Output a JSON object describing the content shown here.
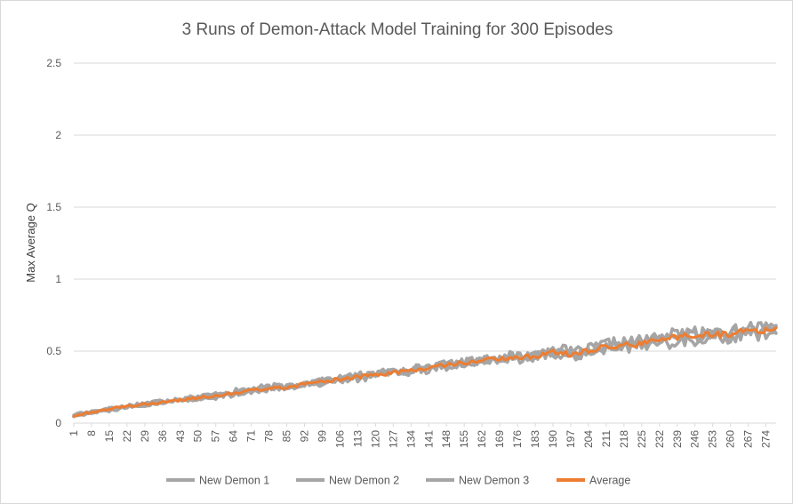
{
  "chart_data": {
    "type": "line",
    "title": "3 Runs of Demon-Attack Model Training for 300 Episodes",
    "xlabel": "",
    "ylabel": "Max Average Q",
    "ylim": [
      0,
      2.5
    ],
    "y_ticks": [
      "0",
      "0.5",
      "1",
      "1.5",
      "2",
      "2.5"
    ],
    "x_range": [
      1,
      278
    ],
    "x_tick_labels": [
      "1",
      "8",
      "15",
      "22",
      "29",
      "36",
      "43",
      "50",
      "57",
      "64",
      "71",
      "78",
      "85",
      "92",
      "99",
      "106",
      "113",
      "120",
      "127",
      "134",
      "141",
      "148",
      "155",
      "162",
      "169",
      "176",
      "183",
      "190",
      "197",
      "204",
      "211",
      "218",
      "225",
      "232",
      "239",
      "246",
      "253",
      "260",
      "267",
      "274"
    ],
    "grid": "horizontal",
    "legend_position": "bottom",
    "series": [
      {
        "name": "New Demon 1",
        "color": "#a5a5a5",
        "x": [
          1,
          15,
          29,
          43,
          57,
          71,
          85,
          99,
          113,
          127,
          141,
          155,
          169,
          183,
          190,
          197,
          204,
          211,
          218,
          225,
          232,
          239,
          246,
          253,
          260,
          267,
          274,
          278
        ],
        "values": [
          0.05,
          0.1,
          0.14,
          0.17,
          0.2,
          0.24,
          0.26,
          0.29,
          0.33,
          0.36,
          0.39,
          0.42,
          0.46,
          0.47,
          0.53,
          0.49,
          0.51,
          0.55,
          0.56,
          0.57,
          0.6,
          0.62,
          0.61,
          0.63,
          0.62,
          0.65,
          0.66,
          0.67
        ]
      },
      {
        "name": "New Demon 2",
        "color": "#a5a5a5",
        "x": [
          1,
          15,
          29,
          43,
          57,
          71,
          85,
          99,
          113,
          127,
          141,
          155,
          169,
          183,
          190,
          197,
          204,
          211,
          218,
          225,
          232,
          239,
          246,
          253,
          260,
          267,
          274,
          278
        ],
        "values": [
          0.06,
          0.09,
          0.13,
          0.16,
          0.19,
          0.22,
          0.25,
          0.28,
          0.32,
          0.35,
          0.38,
          0.42,
          0.45,
          0.46,
          0.5,
          0.48,
          0.5,
          0.53,
          0.54,
          0.56,
          0.58,
          0.6,
          0.63,
          0.61,
          0.64,
          0.66,
          0.64,
          0.65
        ]
      },
      {
        "name": "New Demon 3",
        "color": "#a5a5a5",
        "x": [
          1,
          15,
          29,
          43,
          57,
          71,
          85,
          99,
          113,
          127,
          141,
          155,
          169,
          183,
          190,
          197,
          204,
          211,
          218,
          225,
          232,
          239,
          246,
          253,
          260,
          267,
          274,
          278
        ],
        "values": [
          0.05,
          0.1,
          0.12,
          0.16,
          0.18,
          0.22,
          0.25,
          0.29,
          0.31,
          0.35,
          0.37,
          0.41,
          0.44,
          0.45,
          0.48,
          0.47,
          0.49,
          0.51,
          0.52,
          0.53,
          0.55,
          0.57,
          0.58,
          0.6,
          0.59,
          0.62,
          0.61,
          0.63
        ]
      },
      {
        "name": "Average",
        "color": "#ed7d31",
        "x": [
          1,
          15,
          29,
          43,
          57,
          71,
          85,
          99,
          113,
          127,
          141,
          155,
          169,
          183,
          190,
          197,
          204,
          211,
          218,
          225,
          232,
          239,
          246,
          253,
          260,
          267,
          274,
          278
        ],
        "values": [
          0.05,
          0.1,
          0.13,
          0.16,
          0.19,
          0.23,
          0.25,
          0.29,
          0.32,
          0.35,
          0.38,
          0.42,
          0.45,
          0.46,
          0.5,
          0.48,
          0.5,
          0.53,
          0.54,
          0.55,
          0.58,
          0.6,
          0.61,
          0.61,
          0.62,
          0.64,
          0.64,
          0.65
        ]
      }
    ]
  }
}
